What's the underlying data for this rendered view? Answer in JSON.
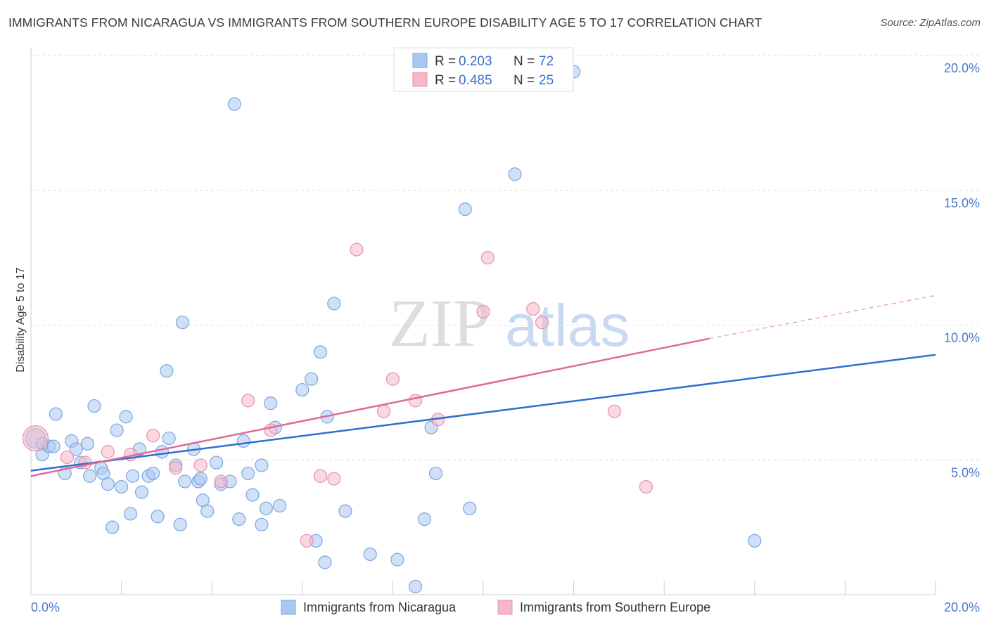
{
  "title": "IMMIGRANTS FROM NICARAGUA VS IMMIGRANTS FROM SOUTHERN EUROPE DISABILITY AGE 5 TO 17 CORRELATION CHART",
  "source": "Source: ZipAtlas.com",
  "watermark": {
    "zip": "ZIP",
    "atlas": "atlas"
  },
  "legend": {
    "r_label": "R =",
    "n_label": "N =",
    "rows": [
      {
        "r": "0.203",
        "n": "72",
        "color": "#a9c8f0"
      },
      {
        "r": "0.485",
        "n": "25",
        "color": "#f5b8c9"
      }
    ]
  },
  "chart_data": {
    "type": "scatter",
    "title": "IMMIGRANTS FROM NICARAGUA VS IMMIGRANTS FROM SOUTHERN EUROPE DISABILITY AGE 5 TO 17 CORRELATION CHART",
    "xlabel": "",
    "ylabel": "Disability Age 5 to 17",
    "xlim": [
      0,
      20
    ],
    "ylim": [
      0,
      20
    ],
    "x_tick_labels": [
      "0.0%",
      "20.0%"
    ],
    "y_ticks": [
      5,
      10,
      15,
      20
    ],
    "y_tick_labels": [
      "5.0%",
      "10.0%",
      "15.0%",
      "20.0%"
    ],
    "grid": true,
    "series": [
      {
        "name": "Immigrants from Nicaragua",
        "color": "#a9c8f0",
        "stroke": "#7aa6e0",
        "trend_color": "#2f6fd0",
        "trend": {
          "x": [
            0,
            20
          ],
          "y": [
            4.6,
            8.9
          ]
        },
        "points": [
          [
            0.1,
            5.8,
            14
          ],
          [
            0.25,
            5.6,
            9
          ],
          [
            0.25,
            5.2,
            9
          ],
          [
            0.4,
            5.5,
            9
          ],
          [
            0.5,
            5.5,
            9
          ],
          [
            0.55,
            6.7,
            9
          ],
          [
            0.75,
            4.5,
            9
          ],
          [
            0.9,
            5.7,
            9
          ],
          [
            1.0,
            5.4,
            9
          ],
          [
            1.1,
            4.9,
            9
          ],
          [
            1.25,
            5.6,
            9
          ],
          [
            1.3,
            4.4,
            9
          ],
          [
            1.4,
            7.0,
            9
          ],
          [
            1.55,
            4.7,
            9
          ],
          [
            1.6,
            4.5,
            9
          ],
          [
            1.7,
            4.1,
            9
          ],
          [
            1.8,
            2.5,
            9
          ],
          [
            1.9,
            6.1,
            9
          ],
          [
            2.0,
            4.0,
            9
          ],
          [
            2.1,
            6.6,
            9
          ],
          [
            2.2,
            3.0,
            9
          ],
          [
            2.25,
            4.4,
            9
          ],
          [
            2.4,
            5.4,
            9
          ],
          [
            2.45,
            3.8,
            9
          ],
          [
            2.6,
            4.4,
            9
          ],
          [
            2.7,
            4.5,
            9
          ],
          [
            2.8,
            2.9,
            9
          ],
          [
            2.9,
            5.3,
            9
          ],
          [
            3.0,
            8.3,
            9
          ],
          [
            3.05,
            5.8,
            9
          ],
          [
            3.2,
            4.8,
            9
          ],
          [
            3.3,
            2.6,
            9
          ],
          [
            3.35,
            10.1,
            9
          ],
          [
            3.4,
            4.2,
            9
          ],
          [
            3.6,
            5.4,
            9
          ],
          [
            3.7,
            4.2,
            9
          ],
          [
            3.75,
            4.3,
            9
          ],
          [
            3.8,
            3.5,
            9
          ],
          [
            3.9,
            3.1,
            9
          ],
          [
            4.1,
            4.9,
            9
          ],
          [
            4.2,
            4.1,
            9
          ],
          [
            4.4,
            4.2,
            9
          ],
          [
            4.5,
            18.2,
            9
          ],
          [
            4.6,
            2.8,
            9
          ],
          [
            4.7,
            5.7,
            9
          ],
          [
            4.8,
            4.5,
            9
          ],
          [
            4.9,
            3.7,
            9
          ],
          [
            5.1,
            2.6,
            9
          ],
          [
            5.1,
            4.8,
            9
          ],
          [
            5.2,
            3.2,
            9
          ],
          [
            5.3,
            7.1,
            9
          ],
          [
            5.4,
            6.2,
            9
          ],
          [
            5.5,
            3.3,
            9
          ],
          [
            6.0,
            7.6,
            9
          ],
          [
            6.2,
            8.0,
            9
          ],
          [
            6.3,
            2.0,
            9
          ],
          [
            6.4,
            9.0,
            9
          ],
          [
            6.5,
            1.2,
            9
          ],
          [
            6.55,
            6.6,
            9
          ],
          [
            6.7,
            10.8,
            9
          ],
          [
            6.95,
            3.1,
            9
          ],
          [
            7.5,
            1.5,
            9
          ],
          [
            8.1,
            1.3,
            9
          ],
          [
            8.5,
            0.3,
            9
          ],
          [
            8.7,
            2.8,
            9
          ],
          [
            8.85,
            6.2,
            9
          ],
          [
            8.95,
            4.5,
            9
          ],
          [
            9.6,
            14.3,
            9
          ],
          [
            9.7,
            3.2,
            9
          ],
          [
            10.7,
            15.6,
            9
          ],
          [
            12.0,
            19.4,
            9
          ],
          [
            16.0,
            2.0,
            9
          ]
        ]
      },
      {
        "name": "Immigrants from Southern Europe",
        "color": "#f5b8c9",
        "stroke": "#e88fab",
        "trend_color": "#e06a95",
        "trend": {
          "x": [
            0,
            15.0
          ],
          "y": [
            4.4,
            9.5
          ]
        },
        "trend_dashed": {
          "x": [
            15.0,
            20
          ],
          "y": [
            9.5,
            11.1
          ]
        },
        "points": [
          [
            0.1,
            5.8,
            18
          ],
          [
            0.8,
            5.1,
            9
          ],
          [
            1.2,
            4.9,
            9
          ],
          [
            1.7,
            5.3,
            9
          ],
          [
            2.2,
            5.2,
            9
          ],
          [
            2.7,
            5.9,
            9
          ],
          [
            3.2,
            4.7,
            9
          ],
          [
            3.75,
            4.8,
            9
          ],
          [
            4.2,
            4.2,
            9
          ],
          [
            4.8,
            7.2,
            9
          ],
          [
            5.3,
            6.1,
            9
          ],
          [
            6.1,
            2.0,
            9
          ],
          [
            6.4,
            4.4,
            9
          ],
          [
            6.7,
            4.3,
            9
          ],
          [
            7.2,
            12.8,
            9
          ],
          [
            7.8,
            6.8,
            9
          ],
          [
            8.0,
            8.0,
            9
          ],
          [
            8.5,
            7.2,
            9
          ],
          [
            9.0,
            6.5,
            9
          ],
          [
            10.0,
            10.5,
            9
          ],
          [
            10.1,
            12.5,
            9
          ],
          [
            11.1,
            10.6,
            9
          ],
          [
            11.3,
            10.1,
            9
          ],
          [
            12.9,
            6.8,
            9
          ],
          [
            13.6,
            4.0,
            9
          ]
        ]
      }
    ]
  }
}
